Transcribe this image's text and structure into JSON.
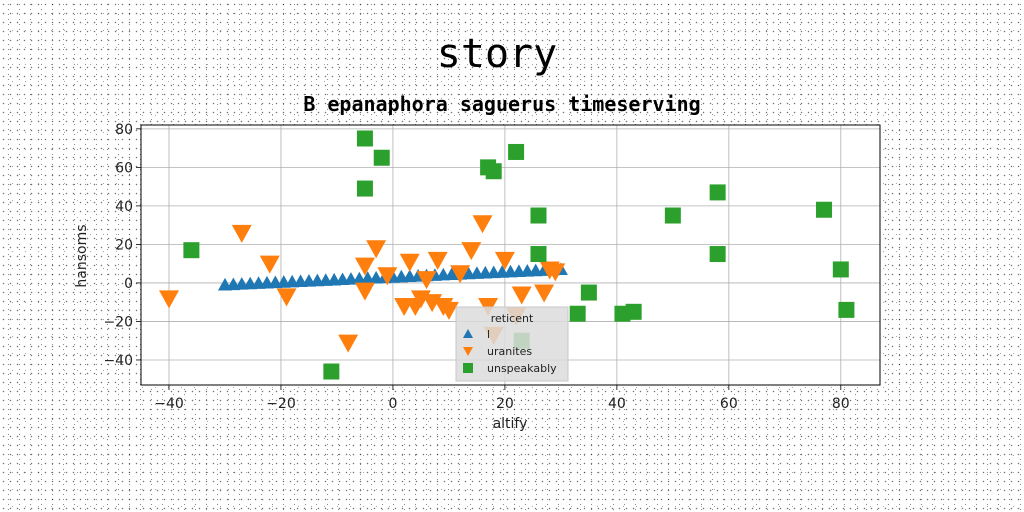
{
  "chart_data": {
    "type": "scatter",
    "title": "story",
    "subtitle": "B epanaphora saguerus timeserving",
    "xlabel": "altify",
    "ylabel": "hansoms",
    "xlim": [
      -45,
      87
    ],
    "ylim": [
      -53,
      82
    ],
    "xticks": [
      -40,
      -20,
      0,
      20,
      40,
      60,
      80
    ],
    "yticks": [
      -40,
      -20,
      0,
      20,
      40,
      60,
      80
    ],
    "grid": true,
    "legend": {
      "title": "reticent",
      "placement": "lower-center"
    },
    "series": [
      {
        "name": "l",
        "marker": "triangle-up",
        "color": "#1f77b4",
        "x": [
          -30,
          -28.5,
          -27,
          -25.5,
          -24,
          -22.5,
          -21,
          -19.5,
          -18,
          -16.5,
          -15,
          -13.5,
          -12,
          -10.5,
          -9,
          -7.5,
          -6,
          -4.5,
          -3,
          -1.5,
          0,
          1.5,
          3,
          4.5,
          6,
          7.5,
          9,
          10.5,
          12,
          13.5,
          15,
          16.5,
          18,
          19.5,
          21,
          22.5,
          24,
          25.5,
          27,
          28.5,
          30
        ],
        "y": [
          -1,
          -0.8,
          -0.6,
          -0.4,
          -0.2,
          0,
          0.2,
          0.4,
          0.6,
          0.8,
          1,
          1.2,
          1.4,
          1.6,
          1.8,
          2,
          2.2,
          2.4,
          2.6,
          2.8,
          3,
          3.2,
          3.4,
          3.6,
          3.8,
          4,
          4.2,
          4.4,
          4.6,
          4.8,
          5,
          5.2,
          5.4,
          5.6,
          5.8,
          6,
          6.2,
          6.4,
          6.6,
          6.8,
          7
        ]
      },
      {
        "name": "uranites",
        "marker": "triangle-down",
        "color": "#ff7f0e",
        "x": [
          -40,
          -27,
          -22,
          -19,
          -8,
          -5,
          -5,
          -3,
          -1,
          2,
          3,
          4,
          5,
          6,
          7,
          8,
          9,
          10,
          12,
          14,
          16,
          17,
          18,
          20,
          22,
          23,
          27,
          28,
          29
        ],
        "y": [
          -8,
          26,
          10,
          -7,
          -31,
          9,
          -4,
          18,
          4,
          -12,
          11,
          -12,
          -8,
          2,
          -10,
          12,
          -12,
          -14,
          5,
          17,
          31,
          -12,
          -27,
          12,
          -17,
          -6,
          -5,
          7,
          6
        ]
      },
      {
        "name": "unspeakably",
        "marker": "square",
        "color": "#2ca02c",
        "x": [
          -36,
          -11,
          -5,
          -5,
          -2,
          17,
          18,
          22,
          23,
          26,
          26,
          33,
          35,
          41,
          43,
          50,
          58,
          58,
          77,
          80,
          81
        ],
        "y": [
          17,
          -46,
          75,
          49,
          65,
          60,
          58,
          68,
          -30,
          35,
          15,
          -16,
          -5,
          -16,
          -15,
          35,
          15,
          47,
          38,
          7,
          -14
        ]
      }
    ]
  }
}
